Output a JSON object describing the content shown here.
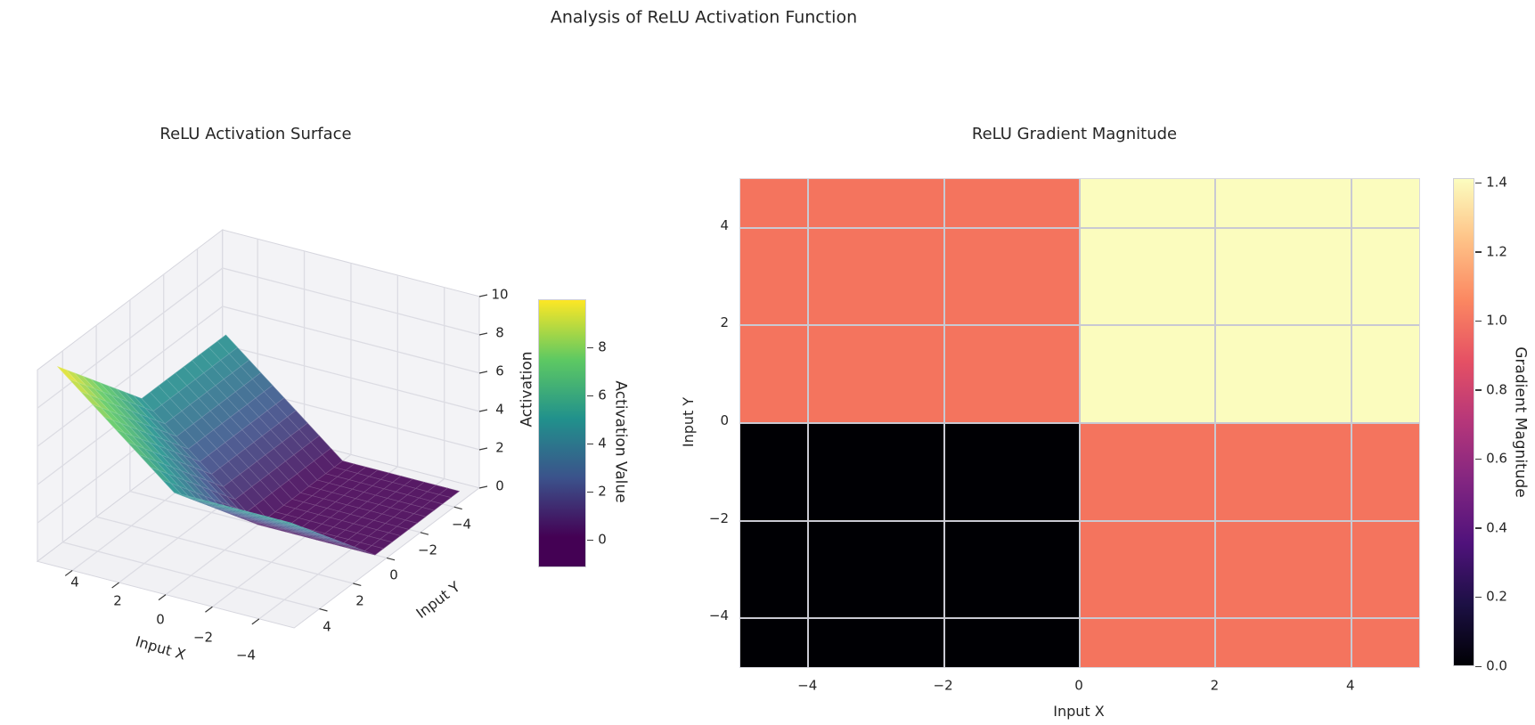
{
  "figure": {
    "suptitle": "Analysis of ReLU Activation Function"
  },
  "chart_data": [
    {
      "type": "surface",
      "title": "ReLU Activation Surface",
      "xlabel": "Input X",
      "ylabel": "Input Y",
      "zlabel": "Activation",
      "surface_function": "z = ReLU(x) + ReLU(y)",
      "x_range": [
        -5,
        5
      ],
      "y_range": [
        -5,
        5
      ],
      "z_range": [
        0,
        10
      ],
      "x_ticks": [
        "4",
        "2",
        "0",
        "−2",
        "−4"
      ],
      "y_ticks": [
        "−4",
        "−2",
        "0",
        "2",
        "4"
      ],
      "z_ticks": [
        "0",
        "2",
        "4",
        "6",
        "8",
        "10"
      ],
      "colormap": "viridis",
      "colormap_stops": [
        "#440154",
        "#3b528b",
        "#21918c",
        "#5ec962",
        "#fde725"
      ],
      "colorbar": {
        "label": "Activation Value",
        "ticks": [
          "0",
          "2",
          "4",
          "6",
          "8"
        ]
      }
    },
    {
      "type": "heatmap",
      "title": "ReLU Gradient Magnitude",
      "xlabel": "Input X",
      "ylabel": "Input Y",
      "x_range": [
        -5,
        5
      ],
      "y_range": [
        -5,
        5
      ],
      "x_ticks": [
        -4,
        -2,
        0,
        2,
        4
      ],
      "y_ticks": [
        4,
        2,
        0,
        -2,
        -4
      ],
      "x_tick_labels": [
        "−4",
        "−2",
        "0",
        "2",
        "4"
      ],
      "y_tick_labels": [
        "4",
        "2",
        "0",
        "−2",
        "−4"
      ],
      "quadrant_values": {
        "top_left": 1.0,
        "top_right": 1.414,
        "bottom_left": 0.0,
        "bottom_right": 1.0
      },
      "quadrant_colors": {
        "top_left": "#f4745e",
        "top_right": "#fbfcbe",
        "bottom_left": "#000004",
        "bottom_right": "#f4745e"
      },
      "colormap": "magma",
      "colormap_stops": [
        "#000004",
        "#1c1044",
        "#4f127b",
        "#812581",
        "#b5367a",
        "#e55064",
        "#fb8761",
        "#fec287",
        "#fcfdbf"
      ],
      "colorbar": {
        "label": "Gradient Magnitude",
        "ticks": [
          "0.0",
          "0.2",
          "0.4",
          "0.6",
          "0.8",
          "1.0",
          "1.2",
          "1.4"
        ],
        "range": [
          0,
          1.414
        ]
      }
    }
  ]
}
